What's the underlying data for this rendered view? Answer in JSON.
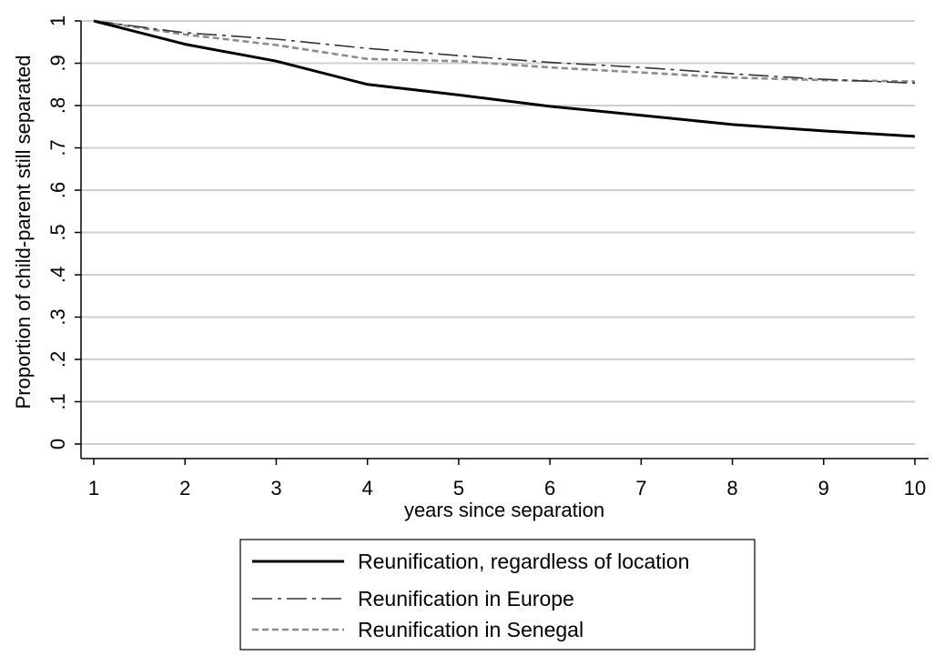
{
  "chart_data": {
    "type": "line",
    "title": "",
    "xlabel": "years since separation",
    "ylabel": "Proportion of child-parent still separated",
    "xlim": [
      1,
      10
    ],
    "ylim": [
      0,
      1
    ],
    "x_ticks": [
      1,
      2,
      3,
      4,
      5,
      6,
      7,
      8,
      9,
      10
    ],
    "x_tick_labels": [
      "1",
      "2",
      "3",
      "4",
      "5",
      "6",
      "7",
      "8",
      "9",
      "10"
    ],
    "y_ticks": [
      0,
      0.1,
      0.2,
      0.3,
      0.4,
      0.5,
      0.6,
      0.7,
      0.8,
      0.9,
      1
    ],
    "y_tick_labels": [
      "0",
      ".1",
      ".2",
      ".3",
      ".4",
      ".5",
      ".6",
      ".7",
      ".8",
      ".9",
      "1"
    ],
    "grid": "horizontal",
    "legend_position": "bottom",
    "x": [
      1,
      2,
      3,
      4,
      5,
      6,
      7,
      8,
      9,
      10
    ],
    "series": [
      {
        "name": "Reunification, regardless of location",
        "values": [
          1.0,
          0.945,
          0.905,
          0.85,
          0.825,
          0.798,
          0.777,
          0.755,
          0.74,
          0.727
        ],
        "color": "#000000",
        "style": "solid"
      },
      {
        "name": "Reunification in Europe",
        "values": [
          1.0,
          0.972,
          0.957,
          0.935,
          0.918,
          0.902,
          0.89,
          0.875,
          0.862,
          0.853
        ],
        "color": "#333333",
        "style": "dash-dot"
      },
      {
        "name": "Reunification in Senegal",
        "values": [
          1.0,
          0.968,
          0.943,
          0.91,
          0.905,
          0.89,
          0.878,
          0.866,
          0.86,
          0.857
        ],
        "color": "#8c8c8c",
        "style": "dashed"
      }
    ]
  }
}
